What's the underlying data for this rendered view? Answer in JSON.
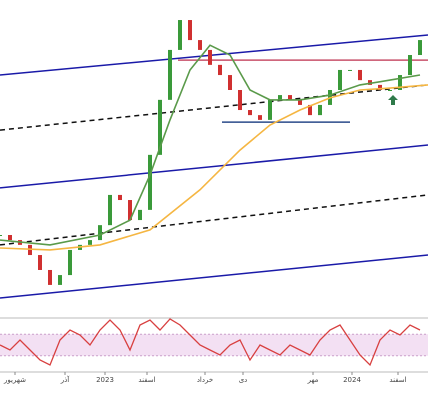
{
  "chart_data": [
    {
      "type": "candlestick",
      "xlim": [
        0,
        42.8
      ],
      "ylim": [
        0,
        100
      ],
      "up_color": "#3a9a3a",
      "down_color": "#d03030",
      "values": [
        26.1,
        24.5,
        23.0,
        19.8,
        15.1,
        10.4,
        13.5,
        21.4,
        23.0,
        24.5,
        29.2,
        38.7,
        37.1,
        30.8,
        34.0,
        51.3,
        68.6,
        84.3,
        93.7,
        87.4,
        84.3,
        79.6,
        76.4,
        71.7,
        65.4,
        63.8,
        62.3,
        68.6,
        70.1,
        68.6,
        67.0,
        63.8,
        67.0,
        71.7,
        78.0,
        78.0,
        74.8,
        73.3,
        71.7,
        71.7,
        76.4,
        82.7,
        87.4
      ],
      "series": [
        {
          "color": "#5a9a4a",
          "x": [
            0,
            5,
            10,
            13,
            15,
            17,
            19,
            21,
            23,
            25,
            27,
            30,
            33,
            36,
            39,
            42
          ],
          "values": [
            24.5,
            23.0,
            26.1,
            30.8,
            45.0,
            62.3,
            78.0,
            85.8,
            82.7,
            71.7,
            68.6,
            68.6,
            70.1,
            73.3,
            74.8,
            76.4
          ]
        },
        {
          "color": "#f5b642",
          "x": [
            0,
            5,
            10,
            15,
            20,
            24,
            27,
            30,
            33,
            36,
            39,
            42.8
          ],
          "values": [
            22.0,
            21.4,
            23.0,
            27.7,
            40.3,
            52.8,
            60.7,
            65.4,
            69.2,
            71.7,
            72.3,
            73.3
          ]
        }
      ],
      "lines": [
        {
          "color": "#1a1aa8",
          "dashed": false,
          "x": [
            0,
            42.8
          ],
          "values": [
            76.4,
            89.0
          ]
        },
        {
          "color": "#1a1aa8",
          "dashed": false,
          "x": [
            0,
            42.8
          ],
          "values": [
            40.9,
            54.4
          ]
        },
        {
          "color": "#1a1aa8",
          "dashed": false,
          "x": [
            0,
            42.8
          ],
          "values": [
            6.3,
            19.8
          ]
        },
        {
          "color": "#111111",
          "dashed": true,
          "x": [
            0,
            42.8
          ],
          "values": [
            59.1,
            73.3
          ]
        },
        {
          "color": "#111111",
          "dashed": true,
          "x": [
            0,
            42.8
          ],
          "values": [
            23.0,
            38.7
          ]
        },
        {
          "color": "#c8506a",
          "dashed": false,
          "x": [
            17.8,
            42.8
          ],
          "values": [
            81.1,
            81.1
          ]
        },
        {
          "color": "#2a4a8a",
          "dashed": false,
          "x": [
            22.2,
            35.0
          ],
          "values": [
            61.6,
            61.6
          ]
        }
      ]
    },
    {
      "type": "line",
      "xlim": [
        0,
        42.8
      ],
      "ylim": [
        0,
        100
      ],
      "band": [
        30,
        70
      ],
      "band_color": "#f3e0f3",
      "color": "#d84040",
      "values": [
        50.0,
        40.7,
        59.3,
        40.7,
        22.2,
        13.0,
        59.3,
        77.8,
        68.5,
        50.0,
        77.8,
        96.3,
        77.8,
        40.7,
        87.0,
        96.3,
        77.8,
        98.1,
        87.0,
        68.5,
        50.0,
        40.7,
        31.5,
        50.0,
        59.3,
        22.2,
        50.0,
        40.7,
        31.5,
        50.0,
        40.7,
        31.5,
        59.3,
        77.8,
        87.0,
        59.3,
        31.5,
        13.0,
        59.3,
        77.8,
        68.5,
        87.0,
        77.8
      ],
      "xticks": [
        {
          "value": 1.5,
          "label": "شهریور"
        },
        {
          "value": 6.5,
          "label": "آذر"
        },
        {
          "value": 10.5,
          "label": "2023"
        },
        {
          "value": 14.7,
          "label": "اسفند"
        },
        {
          "value": 20.5,
          "label": "خرداد"
        },
        {
          "value": 24.3,
          "label": "دی"
        },
        {
          "value": 31.3,
          "label": "مهر"
        },
        {
          "value": 35.2,
          "label": "2024"
        },
        {
          "value": 39.8,
          "label": "اسفند"
        }
      ]
    }
  ]
}
